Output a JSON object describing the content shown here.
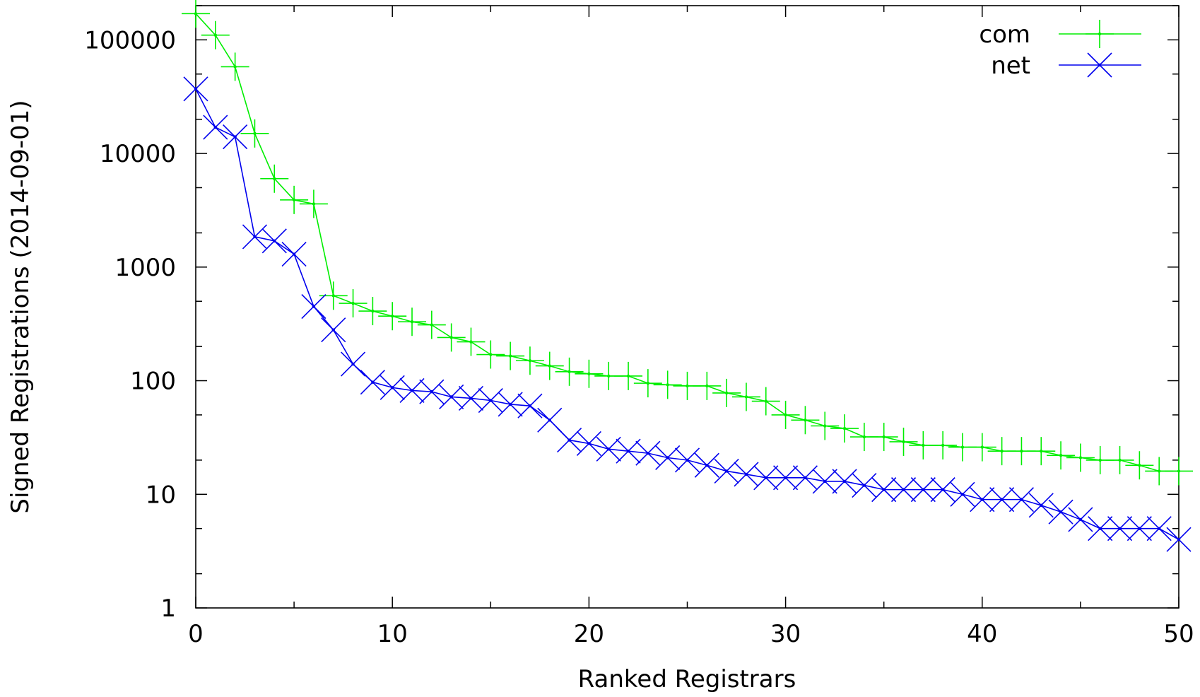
{
  "chart_data": {
    "type": "line",
    "xlabel": "Ranked Registrars",
    "ylabel": "Signed Registrations (2014-09-01)",
    "xlim": [
      0,
      50
    ],
    "ylim": [
      1,
      200000
    ],
    "yscale": "log",
    "grid": false,
    "legend_position": "top-right",
    "x_ticks": [
      0,
      10,
      20,
      30,
      40,
      50
    ],
    "y_ticks": [
      {
        "value": 1,
        "label": "1"
      },
      {
        "value": 10,
        "label": "10"
      },
      {
        "value": 100,
        "label": "100"
      },
      {
        "value": 1000,
        "label": "1000"
      },
      {
        "value": 10000,
        "label": "10000"
      },
      {
        "value": 100000,
        "label": "100000"
      }
    ],
    "series": [
      {
        "name": "com",
        "color": "#00ee00",
        "marker": "plus",
        "x": [
          0,
          1,
          2,
          3,
          4,
          5,
          6,
          7,
          8,
          9,
          10,
          11,
          12,
          13,
          14,
          15,
          16,
          17,
          18,
          19,
          20,
          21,
          22,
          23,
          24,
          25,
          26,
          27,
          28,
          29,
          30,
          31,
          32,
          33,
          34,
          35,
          36,
          37,
          38,
          39,
          40,
          41,
          42,
          43,
          44,
          45,
          46,
          47,
          48,
          49,
          50
        ],
        "y": [
          170000,
          110000,
          58000,
          15000,
          6000,
          3900,
          3600,
          560,
          480,
          410,
          370,
          330,
          310,
          240,
          220,
          170,
          165,
          150,
          135,
          120,
          115,
          110,
          110,
          95,
          92,
          90,
          90,
          78,
          72,
          66,
          50,
          45,
          40,
          38,
          32,
          32,
          29,
          27,
          27,
          26,
          26,
          24,
          24,
          24,
          22,
          21,
          20,
          20,
          18,
          16,
          16
        ]
      },
      {
        "name": "net",
        "color": "#0000ee",
        "marker": "cross",
        "x": [
          0,
          1,
          2,
          3,
          4,
          5,
          6,
          7,
          8,
          9,
          10,
          11,
          12,
          13,
          14,
          15,
          16,
          17,
          18,
          19,
          20,
          21,
          22,
          23,
          24,
          25,
          26,
          27,
          28,
          29,
          30,
          31,
          32,
          33,
          34,
          35,
          36,
          37,
          38,
          39,
          40,
          41,
          42,
          43,
          44,
          45,
          46,
          47,
          48,
          49,
          50
        ],
        "y": [
          37000,
          17000,
          14000,
          1850,
          1700,
          1300,
          450,
          280,
          140,
          97,
          87,
          82,
          80,
          72,
          70,
          67,
          62,
          60,
          45,
          30,
          28,
          25,
          24,
          23,
          21,
          20,
          18,
          16,
          15,
          14,
          14,
          14,
          13,
          13,
          12,
          11,
          11,
          11,
          11,
          10,
          9,
          9,
          9,
          8,
          7,
          6,
          5,
          5,
          5,
          5,
          4
        ]
      }
    ]
  }
}
